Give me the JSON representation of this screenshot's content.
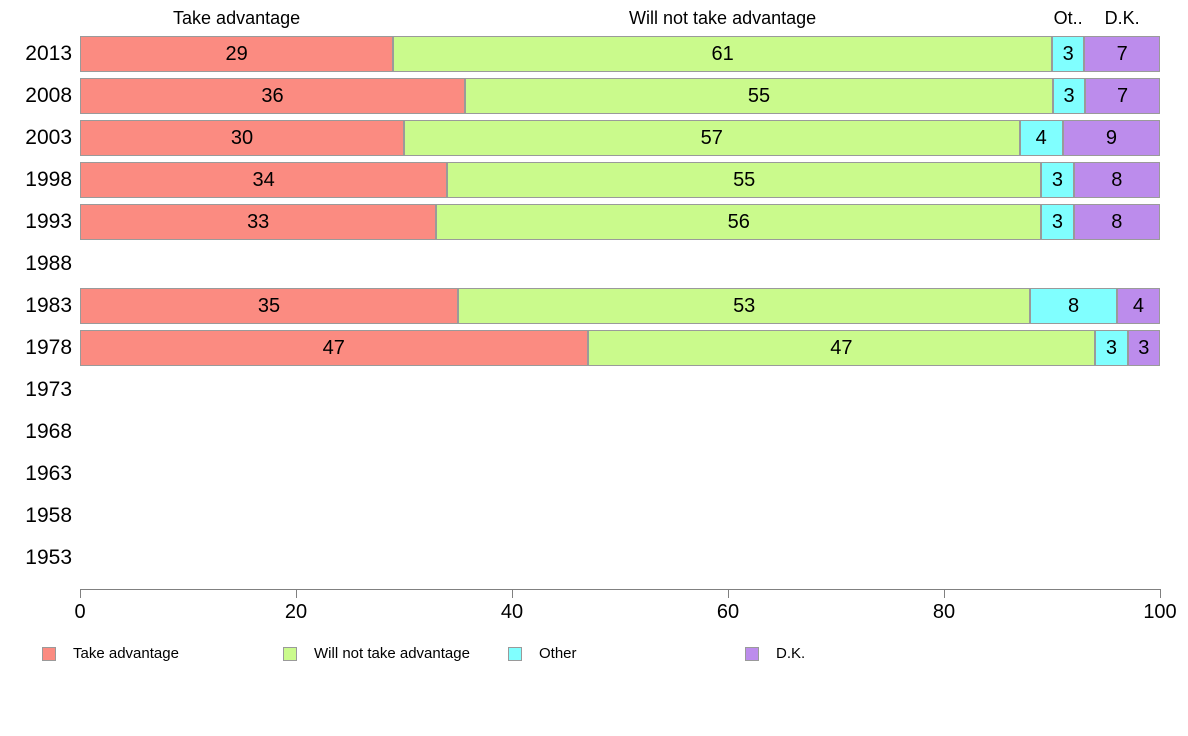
{
  "chart_data": {
    "type": "bar",
    "orientation": "horizontal-stacked",
    "title": "",
    "xlabel": "",
    "ylabel": "",
    "xlim": [
      0,
      100
    ],
    "x_ticks": [
      0,
      20,
      40,
      60,
      80,
      100
    ],
    "grid": false,
    "legend_position": "bottom",
    "column_headers": [
      "Take advantage",
      "Will not take advantage",
      "Ot..",
      "D.K."
    ],
    "categories": [
      "2013",
      "2008",
      "2003",
      "1998",
      "1993",
      "1988",
      "1983",
      "1978",
      "1973",
      "1968",
      "1963",
      "1958",
      "1953"
    ],
    "series": [
      {
        "name": "Take advantage",
        "color": "#FB8B81",
        "values": [
          29,
          36,
          30,
          34,
          33,
          null,
          35,
          47,
          null,
          null,
          null,
          null,
          null
        ]
      },
      {
        "name": "Will not take advantage",
        "color": "#CAFA8C",
        "values": [
          61,
          55,
          57,
          55,
          56,
          null,
          53,
          47,
          null,
          null,
          null,
          null,
          null
        ]
      },
      {
        "name": "Other",
        "color": "#80FFFF",
        "values": [
          3,
          3,
          4,
          3,
          3,
          null,
          8,
          3,
          null,
          null,
          null,
          null,
          null
        ]
      },
      {
        "name": "D.K.",
        "color": "#BC8CEC",
        "values": [
          7,
          7,
          9,
          8,
          8,
          null,
          4,
          3,
          null,
          null,
          null,
          null,
          null
        ]
      }
    ],
    "legend": [
      "Take advantage",
      "Will not take advantage",
      "Other",
      "D.K."
    ]
  },
  "layout_colors": {
    "axis": "#808080",
    "segment_border": "#9a9a9a",
    "background": "#ffffff"
  }
}
